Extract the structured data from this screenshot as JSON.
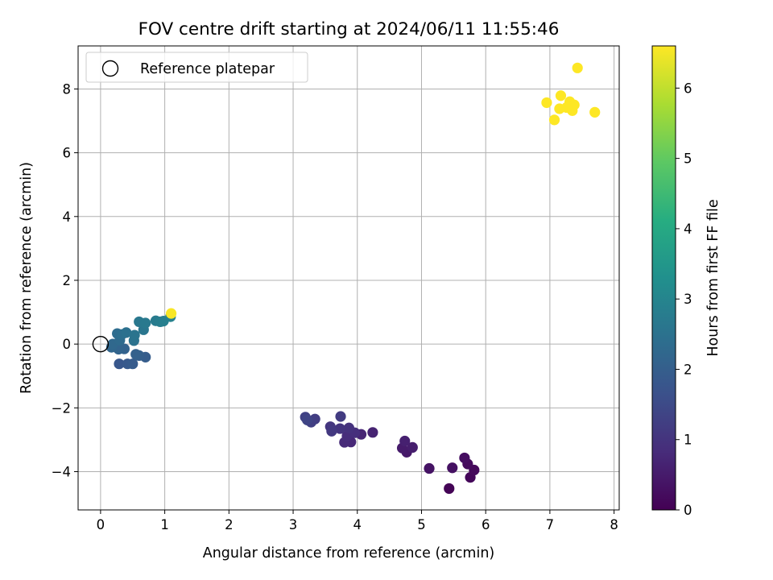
{
  "chart_data": {
    "type": "scatter",
    "title": "FOV centre drift starting at 2024/06/11 11:55:46",
    "xlabel": "Angular distance from reference (arcmin)",
    "ylabel": "Rotation from reference (arcmin)",
    "xlim": [
      -0.35,
      8.08
    ],
    "ylim": [
      -5.2,
      9.35
    ],
    "xticks": [
      0,
      1,
      2,
      3,
      4,
      5,
      6,
      7,
      8
    ],
    "yticks": [
      -4,
      -2,
      0,
      2,
      4,
      6,
      8
    ],
    "grid": true,
    "legend": {
      "placement": "top-left",
      "entries": [
        "Reference platepar"
      ]
    },
    "reference_point": {
      "x": 0,
      "y": 0,
      "label": "Reference platepar"
    },
    "colorbar": {
      "label": "Hours from first FF file",
      "range": [
        0,
        6.6
      ],
      "ticks": [
        0,
        1,
        2,
        3,
        4,
        5,
        6
      ],
      "colormap": "viridis"
    },
    "points": [
      {
        "x": 5.43,
        "y": -4.53,
        "c": 0.05
      },
      {
        "x": 5.76,
        "y": -4.18,
        "c": 0.1
      },
      {
        "x": 5.82,
        "y": -3.95,
        "c": 0.15
      },
      {
        "x": 5.72,
        "y": -3.76,
        "c": 0.2
      },
      {
        "x": 5.67,
        "y": -3.57,
        "c": 0.25
      },
      {
        "x": 5.48,
        "y": -3.88,
        "c": 0.3
      },
      {
        "x": 5.12,
        "y": -3.9,
        "c": 0.35
      },
      {
        "x": 4.77,
        "y": -3.39,
        "c": 0.45
      },
      {
        "x": 4.7,
        "y": -3.26,
        "c": 0.5
      },
      {
        "x": 4.86,
        "y": -3.24,
        "c": 0.55
      },
      {
        "x": 4.74,
        "y": -3.04,
        "c": 0.6
      },
      {
        "x": 4.24,
        "y": -2.77,
        "c": 0.65
      },
      {
        "x": 4.06,
        "y": -2.83,
        "c": 0.7
      },
      {
        "x": 3.9,
        "y": -3.07,
        "c": 0.75
      },
      {
        "x": 3.8,
        "y": -3.08,
        "c": 0.8
      },
      {
        "x": 3.84,
        "y": -2.88,
        "c": 0.85
      },
      {
        "x": 3.96,
        "y": -2.78,
        "c": 0.9
      },
      {
        "x": 3.87,
        "y": -2.63,
        "c": 0.95
      },
      {
        "x": 3.73,
        "y": -2.65,
        "c": 1.0
      },
      {
        "x": 3.58,
        "y": -2.59,
        "c": 1.05
      },
      {
        "x": 3.6,
        "y": -2.73,
        "c": 1.1
      },
      {
        "x": 3.74,
        "y": -2.27,
        "c": 1.15
      },
      {
        "x": 3.34,
        "y": -2.35,
        "c": 1.2
      },
      {
        "x": 3.28,
        "y": -2.45,
        "c": 1.25
      },
      {
        "x": 3.19,
        "y": -2.29,
        "c": 1.3
      },
      {
        "x": 3.22,
        "y": -2.38,
        "c": 1.35
      },
      {
        "x": 0.29,
        "y": -0.62,
        "c": 1.8
      },
      {
        "x": 0.42,
        "y": -0.62,
        "c": 1.85
      },
      {
        "x": 0.5,
        "y": -0.62,
        "c": 1.9
      },
      {
        "x": 0.7,
        "y": -0.41,
        "c": 1.95
      },
      {
        "x": 0.6,
        "y": -0.36,
        "c": 2.0
      },
      {
        "x": 0.55,
        "y": -0.32,
        "c": 2.05
      },
      {
        "x": 0.37,
        "y": -0.15,
        "c": 2.1
      },
      {
        "x": 0.28,
        "y": -0.16,
        "c": 2.15
      },
      {
        "x": 0.17,
        "y": -0.1,
        "c": 2.2
      },
      {
        "x": 0.19,
        "y": 0.0,
        "c": 2.25
      },
      {
        "x": 0.3,
        "y": 0.12,
        "c": 2.3
      },
      {
        "x": 0.26,
        "y": 0.33,
        "c": 2.35
      },
      {
        "x": 0.33,
        "y": 0.3,
        "c": 2.4
      },
      {
        "x": 0.4,
        "y": 0.36,
        "c": 2.45
      },
      {
        "x": 0.52,
        "y": 0.11,
        "c": 2.5
      },
      {
        "x": 0.53,
        "y": 0.28,
        "c": 2.55
      },
      {
        "x": 0.67,
        "y": 0.45,
        "c": 2.6
      },
      {
        "x": 0.6,
        "y": 0.7,
        "c": 2.65
      },
      {
        "x": 0.7,
        "y": 0.66,
        "c": 2.7
      },
      {
        "x": 0.86,
        "y": 0.73,
        "c": 2.75
      },
      {
        "x": 0.93,
        "y": 0.7,
        "c": 2.8
      },
      {
        "x": 0.98,
        "y": 0.72,
        "c": 2.85
      },
      {
        "x": 1.09,
        "y": 0.86,
        "c": 2.9
      },
      {
        "x": 1.1,
        "y": 0.96,
        "c": 6.55
      },
      {
        "x": 7.43,
        "y": 8.66,
        "c": 6.6
      },
      {
        "x": 6.95,
        "y": 7.57,
        "c": 6.6
      },
      {
        "x": 7.17,
        "y": 7.79,
        "c": 6.6
      },
      {
        "x": 7.31,
        "y": 7.6,
        "c": 6.6
      },
      {
        "x": 7.38,
        "y": 7.5,
        "c": 6.6
      },
      {
        "x": 7.15,
        "y": 7.38,
        "c": 6.6
      },
      {
        "x": 7.35,
        "y": 7.32,
        "c": 6.6
      },
      {
        "x": 7.7,
        "y": 7.27,
        "c": 6.6
      },
      {
        "x": 7.07,
        "y": 7.03,
        "c": 6.6
      },
      {
        "x": 7.26,
        "y": 7.42,
        "c": 6.6
      }
    ]
  }
}
